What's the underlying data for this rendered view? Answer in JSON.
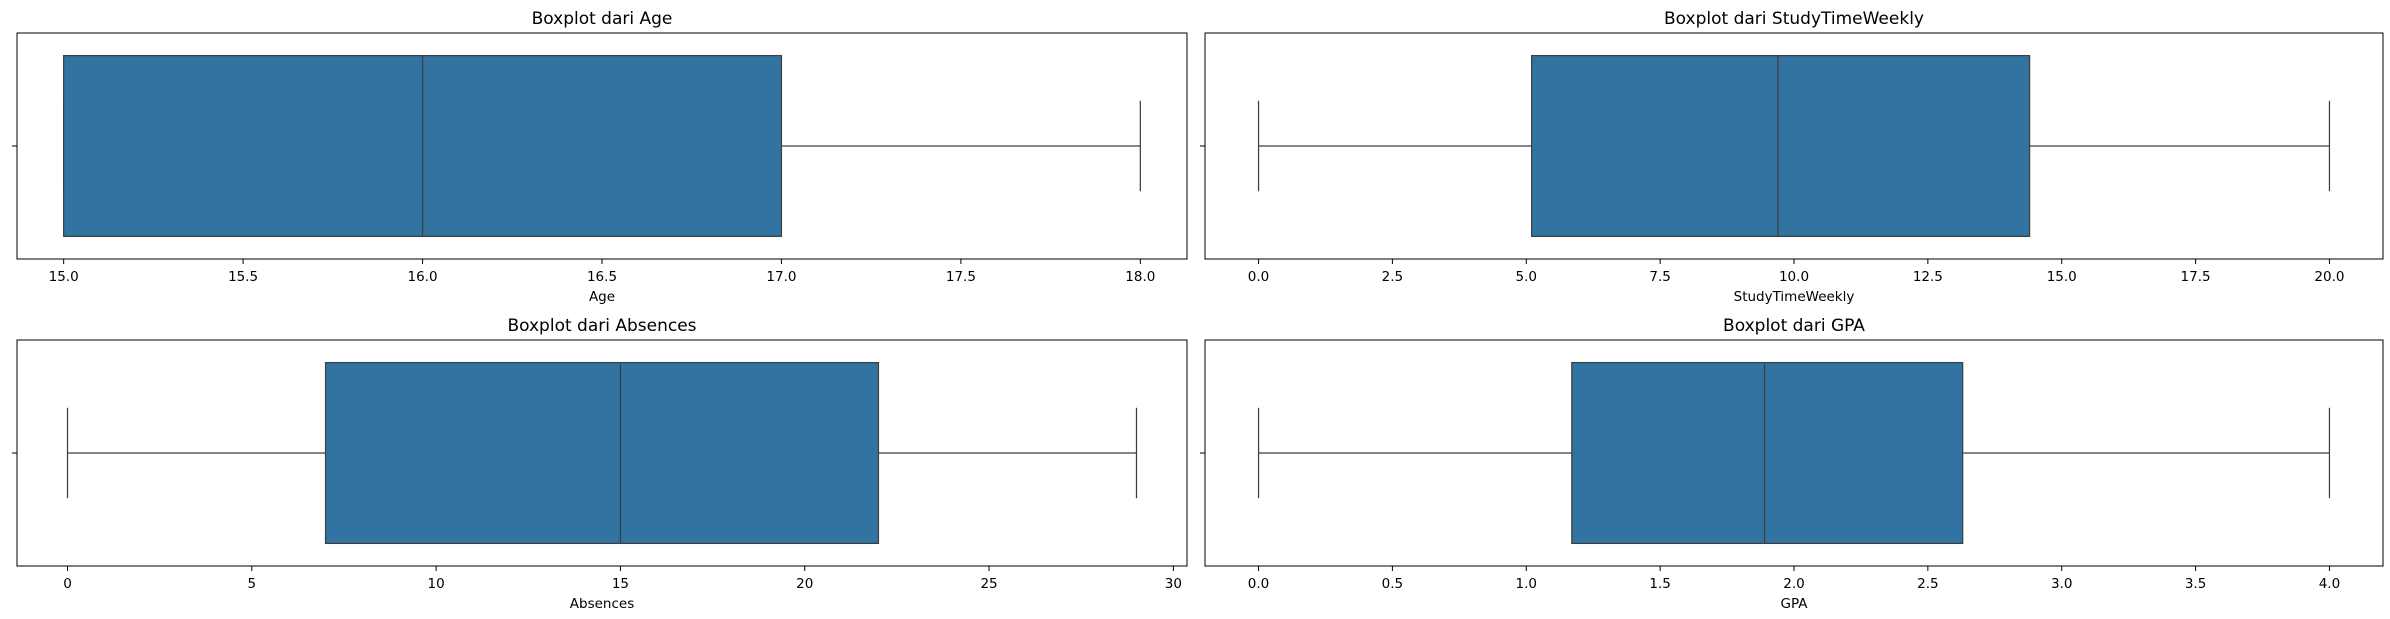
{
  "chart_data": [
    {
      "type": "box",
      "title": "Boxplot dari Age",
      "xlabel": "Age",
      "xlim": [
        14.87,
        18.13
      ],
      "xticks": [
        15.0,
        15.5,
        16.0,
        16.5,
        17.0,
        17.5,
        18.0
      ],
      "tick_labels": [
        "15.0",
        "15.5",
        "16.0",
        "16.5",
        "17.0",
        "17.5",
        "18.0"
      ],
      "stats": {
        "whislo": 15.0,
        "q1": 15.0,
        "med": 16.0,
        "q3": 17.0,
        "whishi": 18.0
      },
      "box_color": "#3274a1"
    },
    {
      "type": "box",
      "title": "Boxplot dari StudyTimeWeekly",
      "xlabel": "StudyTimeWeekly",
      "xlim": [
        -1.0,
        21.0
      ],
      "xticks": [
        0.0,
        2.5,
        5.0,
        7.5,
        10.0,
        12.5,
        15.0,
        17.5,
        20.0
      ],
      "tick_labels": [
        "0.0",
        "2.5",
        "5.0",
        "7.5",
        "10.0",
        "12.5",
        "15.0",
        "17.5",
        "20.0"
      ],
      "stats": {
        "whislo": 0.0,
        "q1": 5.1,
        "med": 9.7,
        "q3": 14.4,
        "whishi": 20.0
      },
      "box_color": "#3274a1"
    },
    {
      "type": "box",
      "title": "Boxplot dari Absences",
      "xlabel": "Absences",
      "xlim": [
        -1.37,
        30.37
      ],
      "xticks": [
        0,
        5,
        10,
        15,
        20,
        25,
        30
      ],
      "tick_labels": [
        "0",
        "5",
        "10",
        "15",
        "20",
        "25",
        "30"
      ],
      "stats": {
        "whislo": 0,
        "q1": 7,
        "med": 15,
        "q3": 22,
        "whishi": 29
      },
      "box_color": "#3274a1"
    },
    {
      "type": "box",
      "title": "Boxplot dari GPA",
      "xlabel": "GPA",
      "xlim": [
        -0.2,
        4.2
      ],
      "xticks": [
        0.0,
        0.5,
        1.0,
        1.5,
        2.0,
        2.5,
        3.0,
        3.5,
        4.0
      ],
      "tick_labels": [
        "0.0",
        "0.5",
        "1.0",
        "1.5",
        "2.0",
        "2.5",
        "3.0",
        "3.5",
        "4.0"
      ],
      "stats": {
        "whislo": 0.0,
        "q1": 1.17,
        "med": 1.89,
        "q3": 2.63,
        "whishi": 4.0
      },
      "box_color": "#3274a1"
    }
  ]
}
